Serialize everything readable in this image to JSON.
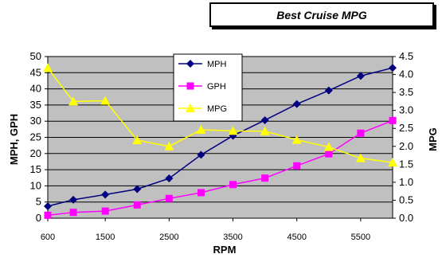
{
  "chart_data": {
    "type": "line",
    "title": "Best Cruise MPG",
    "xlabel": "RPM",
    "ylabel_left": "MPH, GPH",
    "ylabel_right": "MPG",
    "x": [
      600,
      1000,
      1500,
      2000,
      2500,
      3000,
      3500,
      4000,
      4500,
      5000,
      5500,
      6000
    ],
    "x_tick_labels": [
      "600",
      "1500",
      "2500",
      "3500",
      "4500",
      "5500"
    ],
    "left_axis": {
      "min": 0,
      "max": 50,
      "step": 5,
      "labels": [
        "0",
        "5",
        "10",
        "15",
        "20",
        "25",
        "30",
        "35",
        "40",
        "45",
        "50"
      ]
    },
    "right_axis": {
      "min": 0,
      "max": 4.5,
      "step": 0.5,
      "labels": [
        "0.0",
        "0.5",
        "1.0",
        "1.5",
        "2.0",
        "2.5",
        "3.0",
        "3.5",
        "4.0",
        "4.5"
      ]
    },
    "grid": true,
    "legend_position": "top-center",
    "series": [
      {
        "name": "MPH",
        "axis": "left",
        "color": "#000080",
        "marker": "diamond",
        "values": [
          3.7,
          5.7,
          7.3,
          9.0,
          12.3,
          19.6,
          25.5,
          30.3,
          35.3,
          39.5,
          44.0,
          46.5
        ]
      },
      {
        "name": "GPH",
        "axis": "left",
        "color": "#FF00FF",
        "marker": "square",
        "values": [
          0.9,
          1.8,
          2.2,
          4.1,
          6.1,
          7.9,
          10.4,
          12.4,
          16.2,
          19.9,
          26.3,
          30.2
        ]
      },
      {
        "name": "MPG",
        "axis": "right",
        "color": "#FFFF00",
        "marker": "triangle",
        "values": [
          4.18,
          3.25,
          3.27,
          2.17,
          2.0,
          2.46,
          2.43,
          2.42,
          2.18,
          1.98,
          1.67,
          1.55
        ]
      }
    ]
  }
}
